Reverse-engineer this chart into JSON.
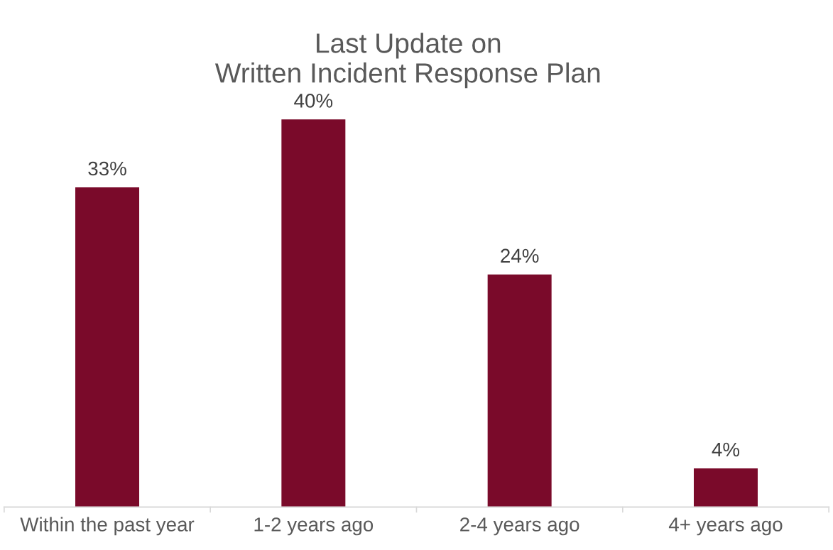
{
  "chart_data": {
    "type": "bar",
    "title": "Last Update on\nWritten Incident Response Plan",
    "categories": [
      "Within the past year",
      "1-2 years ago",
      "2-4 years ago",
      "4+ years ago"
    ],
    "values": [
      33,
      40,
      24,
      4
    ],
    "value_labels": [
      "33%",
      "40%",
      "24%",
      "4%"
    ],
    "color": "#7a0a2a",
    "grid": false,
    "legend": false
  }
}
